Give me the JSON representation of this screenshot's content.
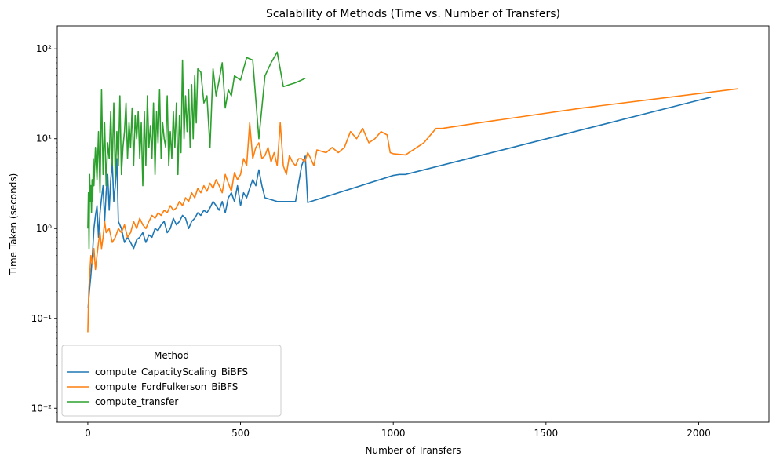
{
  "chart_data": {
    "type": "line",
    "title": "Scalability of Methods (Time vs. Number of Transfers)",
    "xlabel": "Number of Transfers",
    "ylabel": "Time Taken (seconds)",
    "xlim": [
      -100,
      2230
    ],
    "ylim": [
      0.007,
      180
    ],
    "yscale": "log",
    "x_ticks": [
      0,
      500,
      1000,
      1500,
      2000
    ],
    "x_tick_labels": [
      "0",
      "500",
      "1000",
      "1500",
      "2000"
    ],
    "y_ticks": [
      0.01,
      0.1,
      1,
      10,
      100
    ],
    "y_tick_labels": [
      "10⁻²",
      "10⁻¹",
      "10⁰",
      "10¹",
      "10²"
    ],
    "grid": false,
    "legend": {
      "title": "Method",
      "placement": "lower-left"
    },
    "series": [
      {
        "name": "compute_CapacityScaling_BiBFS",
        "color": "#1f77b4",
        "x": [
          1,
          5,
          10,
          15,
          20,
          25,
          30,
          35,
          40,
          45,
          50,
          55,
          60,
          65,
          70,
          75,
          80,
          85,
          90,
          95,
          100,
          110,
          120,
          130,
          140,
          150,
          160,
          170,
          180,
          190,
          200,
          210,
          220,
          230,
          240,
          250,
          260,
          270,
          280,
          290,
          300,
          310,
          320,
          330,
          340,
          350,
          360,
          370,
          380,
          390,
          400,
          410,
          420,
          430,
          440,
          450,
          460,
          470,
          480,
          490,
          500,
          510,
          520,
          530,
          540,
          550,
          560,
          570,
          580,
          620,
          680,
          700,
          712,
          720,
          1000,
          1020,
          1040,
          2040
        ],
        "y": [
          0.13,
          0.2,
          0.3,
          0.5,
          1.0,
          1.4,
          1.8,
          0.8,
          1.5,
          2.2,
          3.0,
          1.2,
          2.5,
          4.0,
          1.6,
          3.5,
          5.5,
          2.0,
          3.0,
          6.0,
          1.2,
          1.0,
          0.7,
          0.8,
          0.7,
          0.6,
          0.75,
          0.8,
          0.9,
          0.7,
          0.85,
          0.8,
          1.0,
          0.95,
          1.1,
          1.2,
          0.9,
          1.0,
          1.3,
          1.1,
          1.2,
          1.4,
          1.3,
          1.0,
          1.2,
          1.3,
          1.5,
          1.4,
          1.6,
          1.5,
          1.7,
          2.0,
          1.8,
          1.6,
          2.0,
          1.5,
          2.2,
          2.5,
          2.0,
          3.0,
          1.8,
          2.5,
          2.2,
          2.8,
          3.5,
          3.0,
          4.5,
          3.0,
          2.2,
          2.0,
          2.0,
          5.0,
          6.4,
          1.95,
          3.9,
          4.0,
          4.0,
          29
        ]
      },
      {
        "name": "compute_FordFulkerson_BiBFS",
        "color": "#ff7f0e",
        "x": [
          0,
          3,
          6,
          10,
          15,
          20,
          25,
          30,
          35,
          40,
          45,
          50,
          55,
          60,
          70,
          80,
          90,
          100,
          110,
          120,
          130,
          140,
          150,
          160,
          170,
          180,
          190,
          200,
          210,
          220,
          230,
          240,
          250,
          260,
          270,
          280,
          290,
          300,
          310,
          320,
          330,
          340,
          350,
          360,
          370,
          380,
          390,
          400,
          410,
          420,
          430,
          440,
          450,
          460,
          470,
          480,
          490,
          500,
          510,
          520,
          530,
          540,
          550,
          560,
          570,
          580,
          590,
          600,
          610,
          620,
          630,
          640,
          650,
          660,
          670,
          680,
          690,
          700,
          710,
          720,
          730,
          740,
          750,
          780,
          800,
          820,
          840,
          860,
          880,
          900,
          920,
          940,
          960,
          980,
          990,
          1000,
          1040,
          1100,
          1140,
          1160,
          1280,
          1620,
          2130
        ],
        "y": [
          0.07,
          0.2,
          0.3,
          0.5,
          0.4,
          0.6,
          0.35,
          0.5,
          0.7,
          0.9,
          0.6,
          0.8,
          1.2,
          0.9,
          1.0,
          0.7,
          0.8,
          1.0,
          0.9,
          1.1,
          0.8,
          0.9,
          1.2,
          1.0,
          1.3,
          1.1,
          1.0,
          1.2,
          1.4,
          1.3,
          1.5,
          1.4,
          1.6,
          1.5,
          1.8,
          1.6,
          1.7,
          2.0,
          1.8,
          2.2,
          2.0,
          2.5,
          2.2,
          2.8,
          2.5,
          3.0,
          2.6,
          3.2,
          2.8,
          3.5,
          3.0,
          2.5,
          4.0,
          3.2,
          2.6,
          4.2,
          3.5,
          4.0,
          6.0,
          5.0,
          15.0,
          6.0,
          8.0,
          9.0,
          6.0,
          6.5,
          8.0,
          5.5,
          7.0,
          5.0,
          15.0,
          5.0,
          4.0,
          6.5,
          5.5,
          5.0,
          6.0,
          6.0,
          5.5,
          7.0,
          6.0,
          5.0,
          7.5,
          7.0,
          8.0,
          7.0,
          8.0,
          12.0,
          10.0,
          13.0,
          9.0,
          10.0,
          12.0,
          11.0,
          7.0,
          6.8,
          6.6,
          9.0,
          13.0,
          13.0,
          15.0,
          22.0,
          36.0
        ]
      },
      {
        "name": "compute_transfer",
        "color": "#2ca02c",
        "x": [
          0,
          2,
          4,
          6,
          8,
          10,
          12,
          14,
          16,
          18,
          20,
          25,
          30,
          35,
          40,
          45,
          50,
          55,
          60,
          65,
          70,
          75,
          80,
          85,
          90,
          95,
          100,
          105,
          110,
          115,
          120,
          125,
          130,
          135,
          140,
          145,
          150,
          155,
          160,
          165,
          170,
          175,
          180,
          185,
          190,
          195,
          200,
          205,
          210,
          215,
          220,
          225,
          230,
          235,
          240,
          245,
          250,
          255,
          260,
          265,
          270,
          275,
          280,
          285,
          290,
          295,
          300,
          305,
          310,
          315,
          320,
          325,
          330,
          335,
          340,
          345,
          350,
          355,
          360,
          370,
          380,
          390,
          400,
          410,
          420,
          430,
          440,
          450,
          460,
          470,
          480,
          500,
          520,
          540,
          560,
          580,
          600,
          620,
          640,
          680,
          700,
          712
        ],
        "y": [
          1.0,
          2.5,
          0.6,
          4.0,
          2.0,
          3.0,
          1.5,
          3.5,
          2.0,
          6.0,
          3.0,
          8.0,
          3.5,
          12.0,
          2.5,
          35.0,
          4.0,
          15.0,
          3.0,
          9.0,
          6.0,
          20.0,
          5.0,
          25.0,
          3.5,
          12.0,
          5.0,
          30.0,
          4.0,
          8.0,
          12.0,
          25.0,
          6.0,
          15.0,
          8.0,
          22.0,
          5.0,
          18.0,
          10.0,
          20.0,
          6.0,
          15.0,
          3.0,
          20.0,
          5.0,
          30.0,
          8.0,
          14.0,
          6.0,
          25.0,
          4.0,
          20.0,
          9.0,
          35.0,
          6.0,
          15.0,
          10.0,
          8.0,
          30.0,
          5.0,
          12.0,
          6.0,
          20.0,
          8.0,
          25.0,
          4.0,
          18.0,
          7.0,
          75.0,
          10.0,
          30.0,
          12.0,
          35.0,
          8.0,
          40.0,
          10.0,
          50.0,
          15.0,
          60.0,
          55.0,
          25.0,
          30.0,
          8.0,
          60.0,
          30.0,
          45.0,
          70.0,
          22.0,
          35.0,
          30.0,
          50.0,
          45.0,
          80.0,
          75.0,
          10.0,
          50.0,
          70.0,
          92.0,
          38.0,
          42.0,
          45.0,
          47.0
        ]
      }
    ]
  }
}
